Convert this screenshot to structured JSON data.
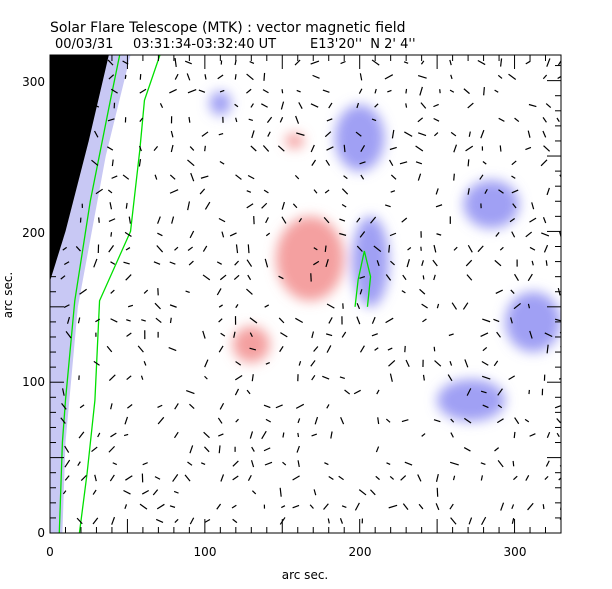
{
  "chart_data": {
    "type": "heatmap",
    "title": "Solar Flare Telescope (MTK) : vector magnetic field",
    "subtitle": {
      "date": "00/03/31",
      "time": "03:31:34-03:32:40 UT",
      "position": "E13'20''  N 2' 4''"
    },
    "xlabel": "arc sec.",
    "ylabel": "arc sec.",
    "xlim": [
      0,
      330
    ],
    "ylim": [
      0,
      317
    ],
    "xticks": [
      0,
      100,
      200,
      300
    ],
    "yticks": [
      0,
      100,
      200,
      300
    ],
    "xtick_labels": [
      "0",
      "100",
      "200",
      "300"
    ],
    "ytick_labels": [
      "0",
      "100",
      "200",
      "300"
    ],
    "colors": {
      "positive": "#f08080",
      "negative": "#8080f0",
      "contour": "#00e000",
      "vector": "#000000",
      "offdisk": "#000000"
    },
    "polarity_regions": [
      {
        "sign": "positive",
        "cx": 168,
        "cy": 182,
        "rx": 22,
        "ry": 28
      },
      {
        "sign": "positive",
        "cx": 130,
        "cy": 125,
        "rx": 12,
        "ry": 12
      },
      {
        "sign": "positive",
        "cx": 158,
        "cy": 260,
        "rx": 6,
        "ry": 5
      },
      {
        "sign": "negative",
        "cx": 207,
        "cy": 180,
        "rx": 12,
        "ry": 30
      },
      {
        "sign": "negative",
        "cx": 200,
        "cy": 262,
        "rx": 16,
        "ry": 22
      },
      {
        "sign": "negative",
        "cx": 272,
        "cy": 88,
        "rx": 22,
        "ry": 14
      },
      {
        "sign": "negative",
        "cx": 285,
        "cy": 218,
        "rx": 18,
        "ry": 16
      },
      {
        "sign": "negative",
        "cx": 312,
        "cy": 140,
        "rx": 18,
        "ry": 20
      },
      {
        "sign": "negative",
        "cx": 110,
        "cy": 285,
        "rx": 7,
        "ry": 8
      }
    ],
    "contours": [
      [
        [
          6,
          0
        ],
        [
          8,
          60
        ],
        [
          10,
          88
        ],
        [
          16,
          154
        ],
        [
          26,
          220
        ],
        [
          39,
          287
        ],
        [
          45,
          317
        ]
      ],
      [
        [
          19,
          0
        ],
        [
          24,
          40
        ],
        [
          29,
          88
        ],
        [
          32,
          154
        ],
        [
          52,
          200
        ],
        [
          58,
          254
        ],
        [
          61,
          287
        ],
        [
          71,
          317
        ]
      ],
      [
        [
          197,
          150
        ],
        [
          199,
          168
        ],
        [
          203,
          187
        ],
        [
          207,
          170
        ],
        [
          205,
          150
        ]
      ]
    ],
    "limb": [
      [
        0,
        317
      ],
      [
        38,
        317
      ],
      [
        25,
        260
      ],
      [
        10,
        200
      ],
      [
        0,
        167
      ]
    ]
  }
}
